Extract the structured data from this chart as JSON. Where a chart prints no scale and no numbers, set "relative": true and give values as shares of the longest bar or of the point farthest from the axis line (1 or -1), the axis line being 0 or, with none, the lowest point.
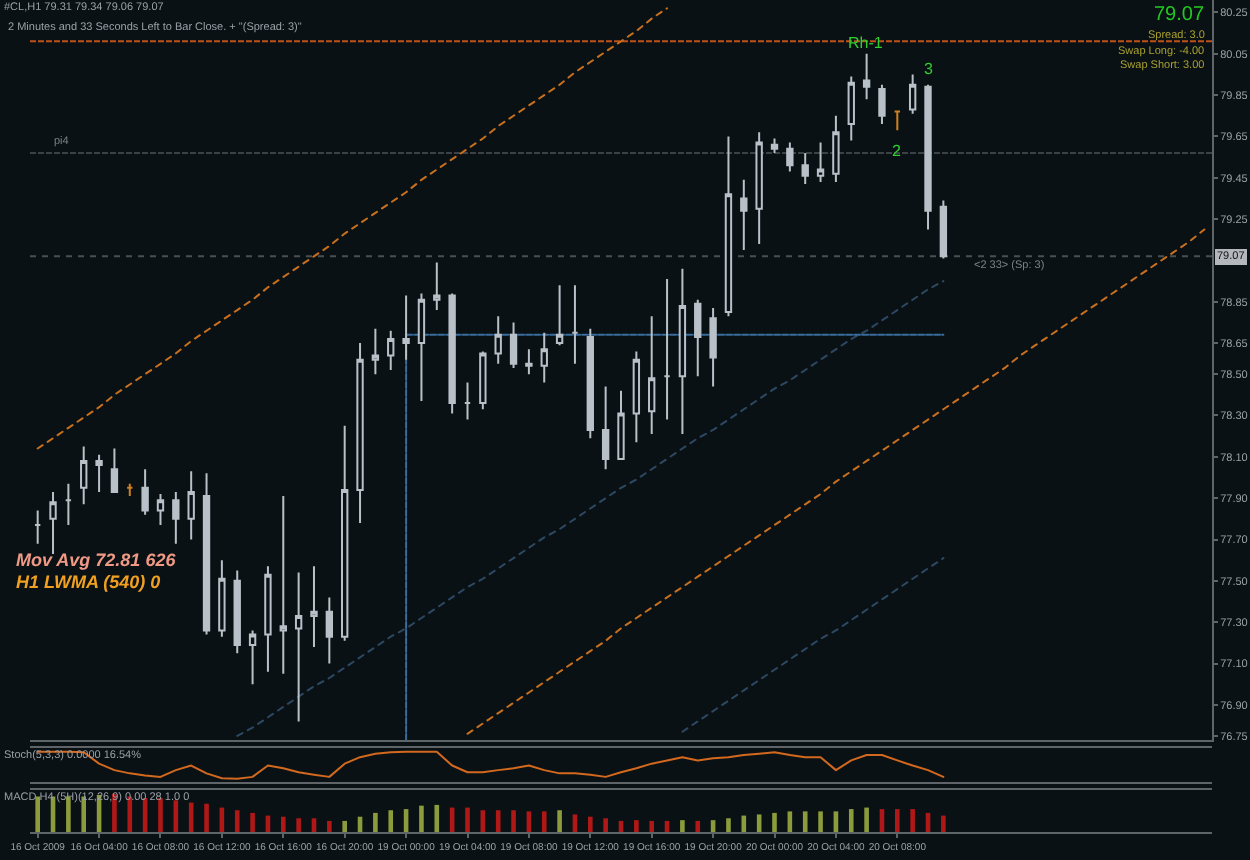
{
  "chart_data": [
    {
      "type": "candlestick",
      "title": "#CL,H1 79.31 79.34 79.06 79.07",
      "subtitle": "2 Minutes and 33 Seconds Left to Bar Close. + \"(Spread: 3)\"",
      "categories": [
        "16 Oct 2009",
        null,
        null,
        null,
        "16 Oct 04:00",
        null,
        null,
        null,
        "16 Oct 08:00",
        null,
        null,
        null,
        "16 Oct 12:00",
        null,
        null,
        null,
        "16 Oct 16:00",
        null,
        null,
        null,
        "16 Oct 20:00",
        null,
        null,
        null,
        "19 Oct 00:00",
        null,
        null,
        null,
        "19 Oct 04:00",
        null,
        null,
        null,
        "19 Oct 08:00",
        null,
        null,
        null,
        "19 Oct 12:00",
        null,
        null,
        null,
        "19 Oct 16:00",
        null,
        null,
        null,
        "19 Oct 20:00",
        null,
        null,
        null,
        "20 Oct 00:00",
        null,
        null,
        null,
        "20 Oct 04:00",
        null,
        null,
        null,
        "20 Oct 08:00",
        null,
        null,
        null,
        null,
        null,
        null,
        null,
        null,
        null,
        null,
        null,
        null,
        null,
        null,
        null,
        null,
        null,
        null,
        null,
        null
      ],
      "ohlc": [
        [
          77.77,
          77.84,
          77.68,
          77.77
        ],
        [
          77.8,
          77.93,
          77.63,
          77.88
        ],
        [
          77.89,
          77.97,
          77.77,
          77.89
        ],
        [
          77.95,
          78.15,
          77.87,
          78.08
        ],
        [
          78.08,
          78.11,
          77.93,
          78.06
        ],
        [
          78.04,
          78.14,
          77.93,
          77.93
        ],
        [
          77.95,
          77.97,
          77.91,
          77.95
        ],
        [
          77.95,
          78.04,
          77.82,
          77.84
        ],
        [
          77.84,
          77.92,
          77.77,
          77.89
        ],
        [
          77.89,
          77.93,
          77.68,
          77.8
        ],
        [
          77.8,
          78.03,
          77.7,
          77.93
        ],
        [
          77.91,
          78.02,
          77.24,
          77.26
        ],
        [
          77.26,
          77.6,
          77.23,
          77.51
        ],
        [
          77.5,
          77.55,
          77.15,
          77.19
        ],
        [
          77.19,
          77.26,
          77.0,
          77.24
        ],
        [
          77.24,
          77.57,
          77.06,
          77.53
        ],
        [
          77.26,
          77.91,
          77.05,
          77.28
        ],
        [
          77.27,
          77.54,
          76.82,
          77.33
        ],
        [
          77.33,
          77.57,
          77.18,
          77.35
        ],
        [
          77.35,
          77.42,
          77.1,
          77.23
        ],
        [
          77.23,
          78.25,
          77.21,
          77.94
        ],
        [
          77.94,
          78.65,
          77.78,
          78.57
        ],
        [
          78.57,
          78.72,
          78.5,
          78.59
        ],
        [
          78.59,
          78.71,
          78.52,
          78.67
        ],
        [
          78.67,
          78.88,
          78.57,
          78.65
        ],
        [
          78.65,
          78.89,
          78.37,
          78.86
        ],
        [
          78.86,
          79.04,
          78.81,
          78.88
        ],
        [
          78.88,
          78.89,
          78.31,
          78.36
        ],
        [
          78.36,
          78.46,
          78.28,
          78.36
        ],
        [
          78.36,
          78.61,
          78.33,
          78.6
        ],
        [
          78.6,
          78.78,
          78.55,
          78.69
        ],
        [
          78.69,
          78.75,
          78.53,
          78.55
        ],
        [
          78.55,
          78.62,
          78.5,
          78.54
        ],
        [
          78.54,
          78.7,
          78.46,
          78.62
        ],
        [
          78.65,
          78.93,
          78.64,
          78.69
        ],
        [
          78.7,
          78.93,
          78.55,
          78.7
        ],
        [
          78.68,
          78.72,
          78.19,
          78.23
        ],
        [
          78.23,
          78.44,
          78.04,
          78.09
        ],
        [
          78.09,
          78.42,
          78.09,
          78.31
        ],
        [
          78.31,
          78.61,
          78.17,
          78.57
        ],
        [
          78.32,
          78.78,
          78.21,
          78.48
        ],
        [
          78.49,
          78.96,
          78.28,
          78.49
        ],
        [
          78.49,
          79.01,
          78.21,
          78.83
        ],
        [
          78.84,
          78.86,
          78.49,
          78.68
        ],
        [
          78.77,
          78.82,
          78.44,
          78.58
        ],
        [
          78.8,
          79.65,
          78.78,
          79.37
        ],
        [
          79.35,
          79.44,
          79.1,
          79.29
        ],
        [
          79.3,
          79.67,
          79.13,
          79.62
        ],
        [
          79.61,
          79.64,
          79.57,
          79.59
        ],
        [
          79.59,
          79.62,
          79.48,
          79.51
        ],
        [
          79.51,
          79.57,
          79.42,
          79.46
        ],
        [
          79.46,
          79.62,
          79.43,
          79.49
        ],
        [
          79.47,
          79.75,
          79.43,
          79.67
        ],
        [
          79.71,
          79.94,
          79.63,
          79.91
        ],
        [
          79.92,
          80.05,
          79.83,
          79.89
        ],
        [
          79.88,
          79.9,
          79.71,
          79.75
        ],
        [
          79.77,
          79.77,
          79.68,
          79.77
        ],
        [
          79.78,
          79.95,
          79.76,
          79.9
        ],
        [
          79.89,
          79.9,
          79.2,
          79.29
        ],
        [
          79.31,
          79.34,
          79.06,
          79.07
        ],
        null,
        null,
        null,
        null,
        null,
        null,
        null,
        null,
        null,
        null,
        null,
        null,
        null,
        null,
        null,
        null,
        null
      ],
      "colors": [
        "#b8c0c8",
        "#b8c0c8",
        "#b8c0c8",
        "#b8c0c8",
        "#b8c0c8",
        "#b8c0c8",
        "#d08020",
        "#b8c0c8",
        "#b8c0c8",
        "#b8c0c8",
        "#b8c0c8",
        "#b8c0c8",
        "#b8c0c8",
        "#b8c0c8",
        "#b8c0c8",
        "#b8c0c8",
        "#b8c0c8",
        "#b8c0c8",
        "#b8c0c8",
        "#b8c0c8",
        "#b8c0c8",
        "#b8c0c8",
        "#b8c0c8",
        "#b8c0c8",
        "#b8c0c8",
        "#b8c0c8",
        "#b8c0c8",
        "#b8c0c8",
        "#b8c0c8",
        "#b8c0c8",
        "#b8c0c8",
        "#b8c0c8",
        "#b8c0c8",
        "#b8c0c8",
        "#b8c0c8",
        "#b8c0c8",
        "#b8c0c8",
        "#b8c0c8",
        "#b8c0c8",
        "#b8c0c8",
        "#b8c0c8",
        "#b8c0c8",
        "#b8c0c8",
        "#b8c0c8",
        "#b8c0c8",
        "#b8c0c8",
        "#b8c0c8",
        "#b8c0c8",
        "#b8c0c8",
        "#b8c0c8",
        "#b8c0c8",
        "#b8c0c8",
        "#b8c0c8",
        "#b8c0c8",
        "#b8c0c8",
        "#b8c0c8",
        "#d08020",
        "#b8c0c8",
        "#b8c0c8",
        "#b8c0c8",
        null,
        null,
        null,
        null,
        null,
        null,
        null,
        null,
        null,
        null,
        null,
        null,
        null,
        null,
        null,
        null,
        null
      ],
      "series": [
        {
          "type": "line",
          "color": "#c8701e",
          "line_style": "dotted",
          "values": [
            78.14,
            78.19,
            78.24,
            78.29,
            78.34,
            78.4,
            78.45,
            78.5,
            78.55,
            78.6,
            78.66,
            78.71,
            78.76,
            78.81,
            78.86,
            78.92,
            78.97,
            79.02,
            79.07,
            79.12,
            79.18,
            79.23,
            79.28,
            79.33,
            79.38,
            79.44,
            79.49,
            79.54,
            79.59,
            79.64,
            79.7,
            79.75,
            79.8,
            79.85,
            79.9,
            79.96,
            80.01,
            80.06,
            80.11,
            80.16,
            80.22,
            80.27,
            null,
            null,
            null,
            null,
            null,
            null,
            null,
            null,
            null,
            null,
            null,
            null,
            null,
            null,
            null,
            null,
            null,
            null,
            null,
            null,
            null,
            null,
            null,
            null,
            null,
            null,
            null,
            null,
            null,
            null,
            null,
            null,
            null,
            null,
            null
          ]
        },
        {
          "type": "line",
          "color": "#c8701e",
          "line_style": "dotted",
          "values": [
            null,
            null,
            null,
            null,
            null,
            null,
            null,
            null,
            null,
            null,
            null,
            null,
            null,
            null,
            null,
            null,
            null,
            null,
            null,
            null,
            null,
            null,
            null,
            null,
            null,
            null,
            null,
            null,
            76.76,
            76.81,
            76.86,
            76.91,
            76.96,
            77.01,
            77.06,
            77.11,
            77.16,
            77.21,
            77.27,
            77.32,
            77.37,
            77.42,
            77.47,
            77.52,
            77.57,
            77.62,
            77.67,
            77.72,
            77.77,
            77.82,
            77.87,
            77.92,
            77.98,
            78.03,
            78.08,
            78.13,
            78.18,
            78.23,
            78.28,
            78.33,
            78.38,
            78.43,
            78.48,
            78.53,
            78.59,
            78.64,
            78.69,
            78.74,
            78.79,
            78.84,
            78.89,
            78.94,
            78.99,
            79.04,
            79.09,
            79.14,
            79.2
          ]
        },
        {
          "type": "line",
          "color": "#2c4862",
          "line_style": "dotted",
          "values": [
            null,
            null,
            null,
            null,
            null,
            null,
            null,
            null,
            null,
            null,
            null,
            null,
            null,
            76.75,
            76.79,
            76.84,
            76.89,
            76.94,
            76.99,
            77.03,
            77.08,
            77.13,
            77.18,
            77.23,
            77.27,
            77.32,
            77.37,
            77.42,
            77.47,
            77.51,
            77.56,
            77.61,
            77.66,
            77.71,
            77.75,
            77.8,
            77.85,
            77.9,
            77.95,
            77.99,
            78.04,
            78.09,
            78.14,
            78.19,
            78.23,
            78.28,
            78.33,
            78.38,
            78.43,
            78.47,
            78.52,
            78.57,
            78.62,
            78.67,
            78.71,
            78.76,
            78.81,
            78.86,
            78.91,
            78.95,
            null,
            null,
            null,
            null,
            null,
            null,
            null,
            null,
            null,
            null,
            null,
            null,
            null,
            null,
            null,
            null,
            null
          ]
        },
        {
          "type": "line",
          "color": "#2c4862",
          "line_style": "dotted",
          "values": [
            null,
            null,
            null,
            null,
            null,
            null,
            null,
            null,
            null,
            null,
            null,
            null,
            null,
            null,
            null,
            null,
            null,
            null,
            null,
            null,
            null,
            null,
            null,
            null,
            null,
            null,
            null,
            null,
            null,
            null,
            null,
            null,
            null,
            null,
            null,
            null,
            null,
            null,
            null,
            null,
            null,
            null,
            76.77,
            76.82,
            76.87,
            76.92,
            76.97,
            77.02,
            77.07,
            77.12,
            77.17,
            77.22,
            77.26,
            77.31,
            77.36,
            77.41,
            77.46,
            77.51,
            77.56,
            77.61,
            null,
            null,
            null,
            null,
            null,
            null,
            null,
            null,
            null,
            null,
            null,
            null,
            null,
            null,
            null,
            null,
            null
          ]
        },
        {
          "type": "line",
          "color": "#3a6c9c",
          "line_style": "dashed",
          "values": [
            null,
            null,
            null,
            null,
            null,
            null,
            null,
            null,
            null,
            null,
            null,
            null,
            null,
            null,
            null,
            null,
            null,
            null,
            null,
            null,
            null,
            null,
            null,
            null,
            78.69,
            78.69,
            78.69,
            78.69,
            78.69,
            78.69,
            78.69,
            78.69,
            78.69,
            78.69,
            78.69,
            78.69,
            78.69,
            78.69,
            78.69,
            78.69,
            78.69,
            78.69,
            78.69,
            78.69,
            78.69,
            78.69,
            78.69,
            78.69,
            78.69,
            78.69,
            78.69,
            78.69,
            78.69,
            78.69,
            78.69,
            78.69,
            78.69,
            78.69,
            78.69,
            78.69,
            null,
            null,
            null,
            null,
            null,
            null,
            null,
            null,
            null,
            null,
            null,
            null,
            null,
            null,
            null,
            null,
            null
          ]
        },
        {
          "type": "line",
          "color": "#3a6c9c",
          "line_style": "dashed",
          "x": [
            "19 Oct 00:00",
            "19 Oct 00:00"
          ],
          "values": [
            76.73,
            78.69
          ]
        }
      ],
      "ref_lines": [
        {
          "axis": "y",
          "value": 80.11,
          "color": "#c0501a",
          "line_style": "dashed"
        },
        {
          "axis": "y",
          "value": 79.57,
          "label": "pi4",
          "color": "#3c4246",
          "line_style": "dashed"
        },
        {
          "axis": "y",
          "value": 79.07,
          "label": "79.07",
          "color": "#4a5054",
          "line_style": "dotted"
        }
      ],
      "annotations": [
        "79.07",
        "Spread: 3.0",
        "Swap Long: -4.00",
        "Swap Short: 3.00",
        "Rh-1",
        "3",
        {
          "text": "2",
          "x": "20 Oct 08:00",
          "y": 79.68
        },
        "<2 33> (Sp: 3)",
        "Mov Avg 72.81 626",
        "H1 LWMA (540) 0"
      ],
      "ylim": [
        76.73,
        80.31
      ],
      "yticks": [
        80.25,
        80.05,
        79.85,
        79.65,
        79.45,
        79.25,
        78.85,
        78.65,
        {
          "value": 78.5,
          "label": "78.50"
        },
        {
          "value": 78.3,
          "label": "78.30"
        },
        {
          "value": 78.1,
          "label": "78.10"
        },
        {
          "value": 77.9,
          "label": "77.90"
        },
        {
          "value": 77.7,
          "label": "77.70"
        },
        {
          "value": 77.5,
          "label": "77.50"
        },
        {
          "value": 77.3,
          "label": "77.30"
        },
        {
          "value": 77.1,
          "label": "77.10"
        },
        {
          "value": 76.9,
          "label": "76.90"
        },
        76.75
      ],
      "tick_labels": "y"
    },
    {
      "type": "line",
      "title": "Stoch(5,3,3) 0.0000 16.54%",
      "categories": [
        "16 Oct 2009",
        null,
        null,
        null,
        "16 Oct 04:00",
        null,
        null,
        null,
        "16 Oct 08:00",
        null,
        null,
        null,
        "16 Oct 12:00",
        null,
        null,
        null,
        "16 Oct 16:00",
        null,
        null,
        null,
        "16 Oct 20:00",
        null,
        null,
        null,
        "19 Oct 00:00",
        null,
        null,
        null,
        "19 Oct 04:00",
        null,
        null,
        null,
        "19 Oct 08:00",
        null,
        null,
        null,
        "19 Oct 12:00",
        null,
        null,
        null,
        "19 Oct 16:00",
        null,
        null,
        null,
        "19 Oct 20:00",
        null,
        null,
        null,
        "20 Oct 00:00",
        null,
        null,
        null,
        "20 Oct 04:00",
        null,
        null,
        null,
        "20 Oct 08:00",
        null,
        null,
        null,
        null,
        null,
        null,
        null,
        null,
        null,
        null,
        null,
        null,
        null,
        null,
        null,
        null,
        null,
        null,
        null,
        null
      ],
      "values": [
        1,
        1,
        1,
        0.98,
        0.56,
        0.32,
        0.2,
        0.12,
        0.07,
        0.32,
        0.49,
        0.2,
        0.02,
        0,
        0.07,
        0.49,
        0.39,
        0.24,
        0.15,
        0.07,
        0.56,
        0.8,
        0.93,
        0.98,
        1,
        1,
        1,
        0.49,
        0.24,
        0.24,
        0.32,
        0.39,
        0.49,
        0.32,
        0.2,
        0.2,
        0.15,
        0.07,
        0.24,
        0.39,
        0.56,
        0.68,
        0.8,
        0.68,
        0.76,
        0.8,
        0.88,
        0.93,
        0.98,
        0.88,
        0.8,
        0.8,
        0.32,
        0.68,
        0.88,
        0.88,
        0.68,
        0.49,
        0.32,
        0.07,
        null,
        null,
        null,
        null,
        null,
        null,
        null,
        null,
        null,
        null,
        null,
        null,
        null,
        null,
        null,
        null,
        null
      ],
      "color": "#d2691e",
      "relative": true,
      "tick_labels": false
    },
    {
      "type": "bar",
      "title": "MACD H4 (5H)(12,26,9) 0.00 28 1.0 0",
      "categories": [
        "16 Oct 2009",
        null,
        null,
        null,
        "16 Oct 04:00",
        null,
        null,
        null,
        "16 Oct 08:00",
        null,
        null,
        null,
        "16 Oct 12:00",
        null,
        null,
        null,
        "16 Oct 16:00",
        null,
        null,
        null,
        "16 Oct 20:00",
        null,
        null,
        null,
        "19 Oct 00:00",
        null,
        null,
        null,
        "19 Oct 04:00",
        null,
        null,
        null,
        "19 Oct 08:00",
        null,
        null,
        null,
        "19 Oct 12:00",
        null,
        null,
        null,
        "19 Oct 16:00",
        null,
        null,
        null,
        "19 Oct 20:00",
        null,
        null,
        null,
        "20 Oct 00:00",
        null,
        null,
        null,
        "20 Oct 04:00",
        null,
        null,
        null,
        "20 Oct 08:00",
        null,
        null,
        null,
        null,
        null,
        null,
        null,
        null,
        null,
        null,
        null,
        null,
        null,
        null,
        null,
        null,
        null,
        null,
        null,
        null
      ],
      "values": [
        0.93,
        0.93,
        0.93,
        0.93,
        0.97,
        1,
        0.93,
        0.89,
        0.89,
        0.83,
        0.77,
        0.74,
        0.64,
        0.57,
        0.5,
        0.43,
        0.4,
        0.36,
        0.36,
        0.29,
        0.29,
        0.4,
        0.5,
        0.57,
        0.6,
        0.69,
        0.71,
        0.64,
        0.64,
        0.57,
        0.57,
        0.57,
        0.54,
        0.54,
        0.57,
        0.46,
        0.4,
        0.36,
        0.29,
        0.31,
        0.29,
        0.29,
        0.31,
        0.29,
        0.31,
        0.36,
        0.43,
        0.46,
        0.5,
        0.54,
        0.54,
        0.54,
        0.54,
        0.6,
        0.64,
        0.6,
        0.6,
        0.6,
        0.5,
        0.43,
        null,
        null,
        null,
        null,
        null,
        null,
        null,
        null,
        null,
        null,
        null,
        null,
        null,
        null,
        null,
        null,
        null
      ],
      "colors": [
        "#8c9c3c",
        "#8c9c3c",
        "#8c9c3c",
        "#8c9c3c",
        "#8c9c3c",
        "#b01818",
        "#b01818",
        "#b01818",
        "#b01818",
        "#b01818",
        "#b01818",
        "#b01818",
        "#b01818",
        "#b01818",
        "#b01818",
        "#b01818",
        "#b01818",
        "#b01818",
        "#b01818",
        "#b01818",
        "#8c9c3c",
        "#8c9c3c",
        "#8c9c3c",
        "#8c9c3c",
        "#8c9c3c",
        "#8c9c3c",
        "#8c9c3c",
        "#b01818",
        "#b01818",
        "#b01818",
        "#b01818",
        "#b01818",
        "#b01818",
        "#b01818",
        "#8c9c3c",
        "#b01818",
        "#b01818",
        "#b01818",
        "#b01818",
        "#b01818",
        "#b01818",
        "#b01818",
        "#8c9c3c",
        "#b01818",
        "#8c9c3c",
        "#8c9c3c",
        "#8c9c3c",
        "#8c9c3c",
        "#8c9c3c",
        "#8c9c3c",
        "#8c9c3c",
        "#8c9c3c",
        "#8c9c3c",
        "#8c9c3c",
        "#8c9c3c",
        "#b01818",
        "#b01818",
        "#b01818",
        "#b01818",
        "#b01818",
        null,
        null,
        null,
        null,
        null,
        null,
        null,
        null,
        null,
        null,
        null,
        null,
        null,
        null,
        null,
        null,
        null
      ],
      "relative": true,
      "tick_labels": "x"
    }
  ]
}
